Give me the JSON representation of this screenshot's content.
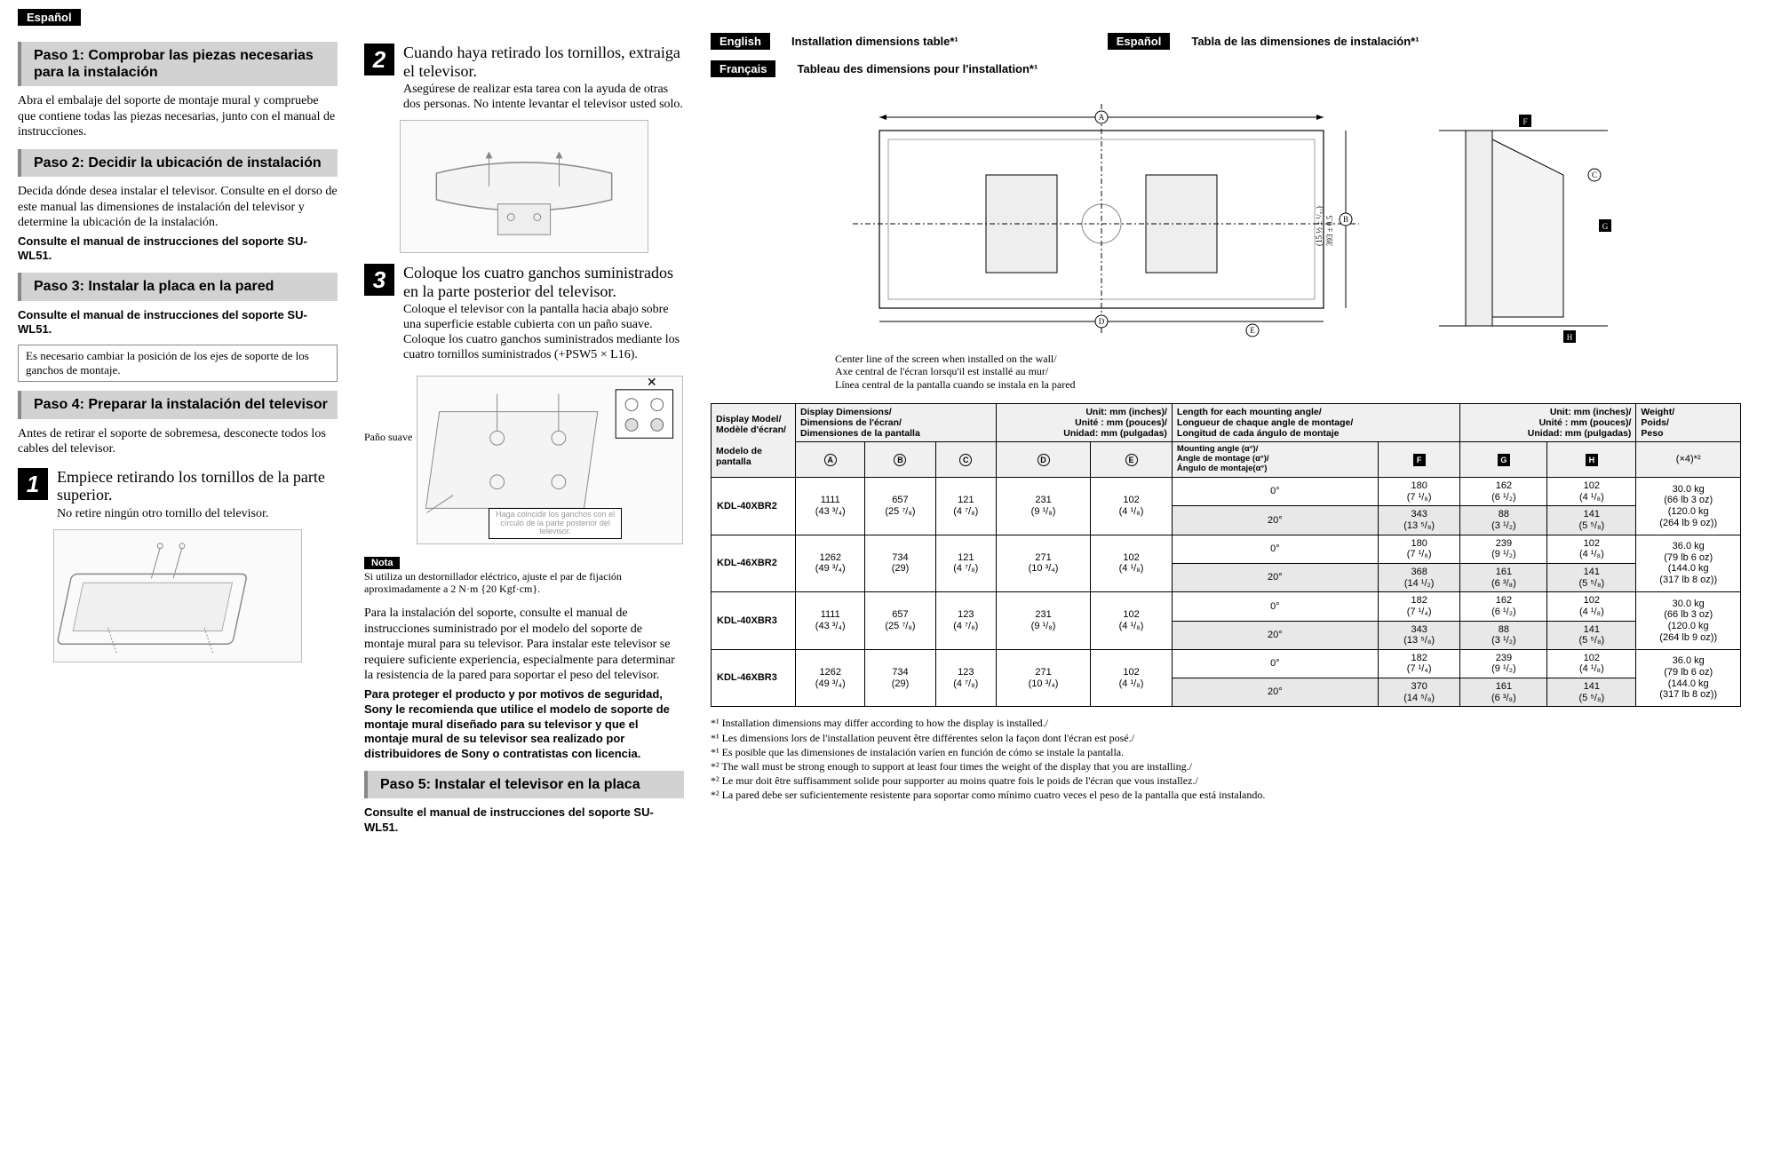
{
  "top_lang": "Español",
  "col_left": {
    "paso1": {
      "label": "Paso 1:",
      "title": "Comprobar las piezas necesarias para la instalación"
    },
    "paso1_body": "Abra el embalaje del soporte de montaje mural y compruebe que contiene todas las piezas necesarias, junto con el manual de instrucciones.",
    "paso2": {
      "label": "Paso 2:",
      "title": "Decidir la ubicación de instalación"
    },
    "paso2_body": "Decida dónde desea instalar el televisor. Consulte en el dorso de este manual las dimensiones de instalación del televisor y determine la ubicación de la instalación.",
    "paso2_bold": "Consulte el manual de instrucciones del soporte SU-WL51.",
    "paso3": {
      "label": "Paso 3:",
      "title": "Instalar la placa en la pared"
    },
    "paso3_bold": "Consulte el manual de instrucciones del soporte SU-WL51.",
    "paso3_note": "Es necesario cambiar la posición de los ejes de soporte de los ganchos de montaje.",
    "paso4": {
      "label": "Paso 4:",
      "title": "Preparar la instalación del televisor"
    },
    "paso4_body": "Antes de retirar el soporte de sobremesa, desconecte todos los cables del televisor.",
    "step1_num": "1",
    "step1_title": "Empiece retirando los tornillos de la parte superior.",
    "step1_sub": "No retire ningún otro tornillo del televisor."
  },
  "col_mid": {
    "step2_num": "2",
    "step2_title": "Cuando haya retirado los tornillos, extraiga el televisor.",
    "step2_sub": "Asegúrese de realizar esta tarea con la ayuda de otras dos personas. No intente levantar el televisor usted solo.",
    "step3_num": "3",
    "step3_title": "Coloque los cuatro ganchos suministrados en la parte posterior del televisor.",
    "step3_sub": "Coloque el televisor con la pantalla hacia abajo sobre una superficie estable cubierta con un paño suave. Coloque los cuatro ganchos suministrados mediante los cuatro tornillos suministrados (+PSW5 × L16).",
    "pano_label": "Paño suave",
    "caption_hook": "Haga coincidir los ganchos con el círculo de la parte posterior del televisor.",
    "nota_label": "Nota",
    "nota_text": "Si utiliza un destornillador eléctrico, ajuste el par de fijación aproximadamente a 2 N·m {20 Kgf·cm}.",
    "para_body": "Para la instalación del soporte, consulte el manual de instrucciones suministrado por el modelo del soporte de montaje mural para su televisor. Para instalar este televisor se requiere suficiente experiencia, especialmente para determinar la resistencia de la pared para soportar el peso del televisor.",
    "para_bold": "Para proteger el producto y por motivos de seguridad, Sony le recomienda que utilice el modelo de soporte de montaje mural diseñado para su televisor y que el montaje mural de su televisor sea realizado por distribuidores de Sony o contratistas con licencia.",
    "paso5": {
      "label": "Paso 5:",
      "title": "Instalar el televisor en la placa"
    },
    "paso5_bold": "Consulte el manual de instrucciones del soporte SU-WL51."
  },
  "col_right": {
    "lang_en": "English",
    "title_en": "Installation dimensions table*¹",
    "lang_es": "Español",
    "title_es": "Tabla de las dimensiones de instalación*¹",
    "lang_fr": "Français",
    "title_fr": "Tableau des dimensions pour l'installation*¹",
    "diagram_dim": "393 ± 0.5\n(15 ½ ± ¹/₃₂)",
    "centerline": "Center line of the screen when installed on the wall/\nAxe central de l'écran lorsqu'il est installé au mur/\nLínea central de la pantalla cuando se instala en la pared",
    "hdr_model": "Display Model/\nModèle d'écran/\n\nModelo de\n        pantalla",
    "hdr_dims": "Display Dimensions/\nDimensions de l'écran/\nDimensiones de la pantalla",
    "hdr_unit1": "Unit: mm (inches)/\nUnité : mm (pouces)/\nUnidad: mm (pulgadas)",
    "hdr_length": "Length for each mounting angle/\nLongueur de chaque angle de montage/\nLongitud de cada ángulo de montaje",
    "hdr_unit2": "Unit: mm (inches)/\nUnité : mm (pouces)/\nUnidad: mm (pulgadas)",
    "hdr_weight": "Weight/\nPoids/\nPeso",
    "hdr_angle": "Mounting angle (α°)/\nAngle de montage (α°)/\nÁngulo de montaje(α°)",
    "hdr_x4": "(×4)*²",
    "cols_circ": [
      "A",
      "B",
      "C",
      "D",
      "E"
    ],
    "cols_sq": [
      "F",
      "G",
      "H"
    ],
    "rows": [
      {
        "model": "KDL-40XBR2",
        "A": "1111\n(43 ³/₄)",
        "B": "657\n(25 ⁷/₈)",
        "C": "121\n(4 ⁷/₈)",
        "D": "231\n(9 ¹/₈)",
        "E": "102\n(4 ¹/₈)",
        "ang": [
          {
            "a": "0°",
            "F": "180\n(7 ¹/₈)",
            "G": "162\n(6 ¹/₂)",
            "H": "102\n(4 ¹/₈)"
          },
          {
            "a": "20°",
            "F": "343\n(13 ⁵/₈)",
            "G": "88\n(3 ¹/₂)",
            "H": "141\n(5 ⁵/₈)"
          }
        ],
        "w": "30.0 kg\n(66 lb 3 oz)\n(120.0 kg\n(264 lb 9 oz))"
      },
      {
        "model": "KDL-46XBR2",
        "A": "1262\n(49 ³/₄)",
        "B": "734\n(29)",
        "C": "121\n(4 ⁷/₈)",
        "D": "271\n(10 ³/₄)",
        "E": "102\n(4 ¹/₈)",
        "ang": [
          {
            "a": "0°",
            "F": "180\n(7 ¹/₈)",
            "G": "239\n(9 ¹/₂)",
            "H": "102\n(4 ¹/₈)"
          },
          {
            "a": "20°",
            "F": "368\n(14 ¹/₂)",
            "G": "161\n(6 ³/₈)",
            "H": "141\n(5 ⁵/₈)"
          }
        ],
        "w": "36.0 kg\n(79 lb 6 oz)\n(144.0 kg\n(317 lb 8 oz))"
      },
      {
        "model": "KDL-40XBR3",
        "A": "1111\n(43 ³/₄)",
        "B": "657\n(25 ⁷/₈)",
        "C": "123\n(4 ⁷/₈)",
        "D": "231\n(9 ¹/₈)",
        "E": "102\n(4 ¹/₈)",
        "ang": [
          {
            "a": "0°",
            "F": "182\n(7 ¹/₄)",
            "G": "162\n(6 ¹/₂)",
            "H": "102\n(4 ¹/₈)"
          },
          {
            "a": "20°",
            "F": "343\n(13 ⁵/₈)",
            "G": "88\n(3 ¹/₂)",
            "H": "141\n(5 ⁵/₈)"
          }
        ],
        "w": "30.0 kg\n(66 lb 3 oz)\n(120.0 kg\n(264 lb 9 oz))"
      },
      {
        "model": "KDL-46XBR3",
        "A": "1262\n(49 ³/₄)",
        "B": "734\n(29)",
        "C": "123\n(4 ⁷/₈)",
        "D": "271\n(10 ³/₄)",
        "E": "102\n(4 ¹/₈)",
        "ang": [
          {
            "a": "0°",
            "F": "182\n(7 ¹/₄)",
            "G": "239\n(9 ¹/₂)",
            "H": "102\n(4 ¹/₈)"
          },
          {
            "a": "20°",
            "F": "370\n(14 ⁵/₈)",
            "G": "161\n(6 ³/₈)",
            "H": "141\n(5 ⁵/₈)"
          }
        ],
        "w": "36.0 kg\n(79 lb 6 oz)\n(144.0 kg\n(317 lb 8 oz))"
      }
    ],
    "footnotes": [
      "*¹ Installation dimensions may differ according to how the display is installed./",
      "*¹ Les dimensions lors de l'installation peuvent être différentes selon la façon dont l'écran est posé./",
      "*¹ Es posible que las dimensiones de instalación varíen en función de cómo se instale la pantalla.",
      "*² The wall must be strong enough to support at least four times the weight of the display that you are installing./",
      "*² Le mur doit être suffisamment solide pour supporter au moins quatre fois le poids de l'écran que vous installez./",
      "*² La pared debe ser suficientemente resistente para soportar como mínimo cuatro veces el peso de la pantalla que está instalando."
    ]
  }
}
